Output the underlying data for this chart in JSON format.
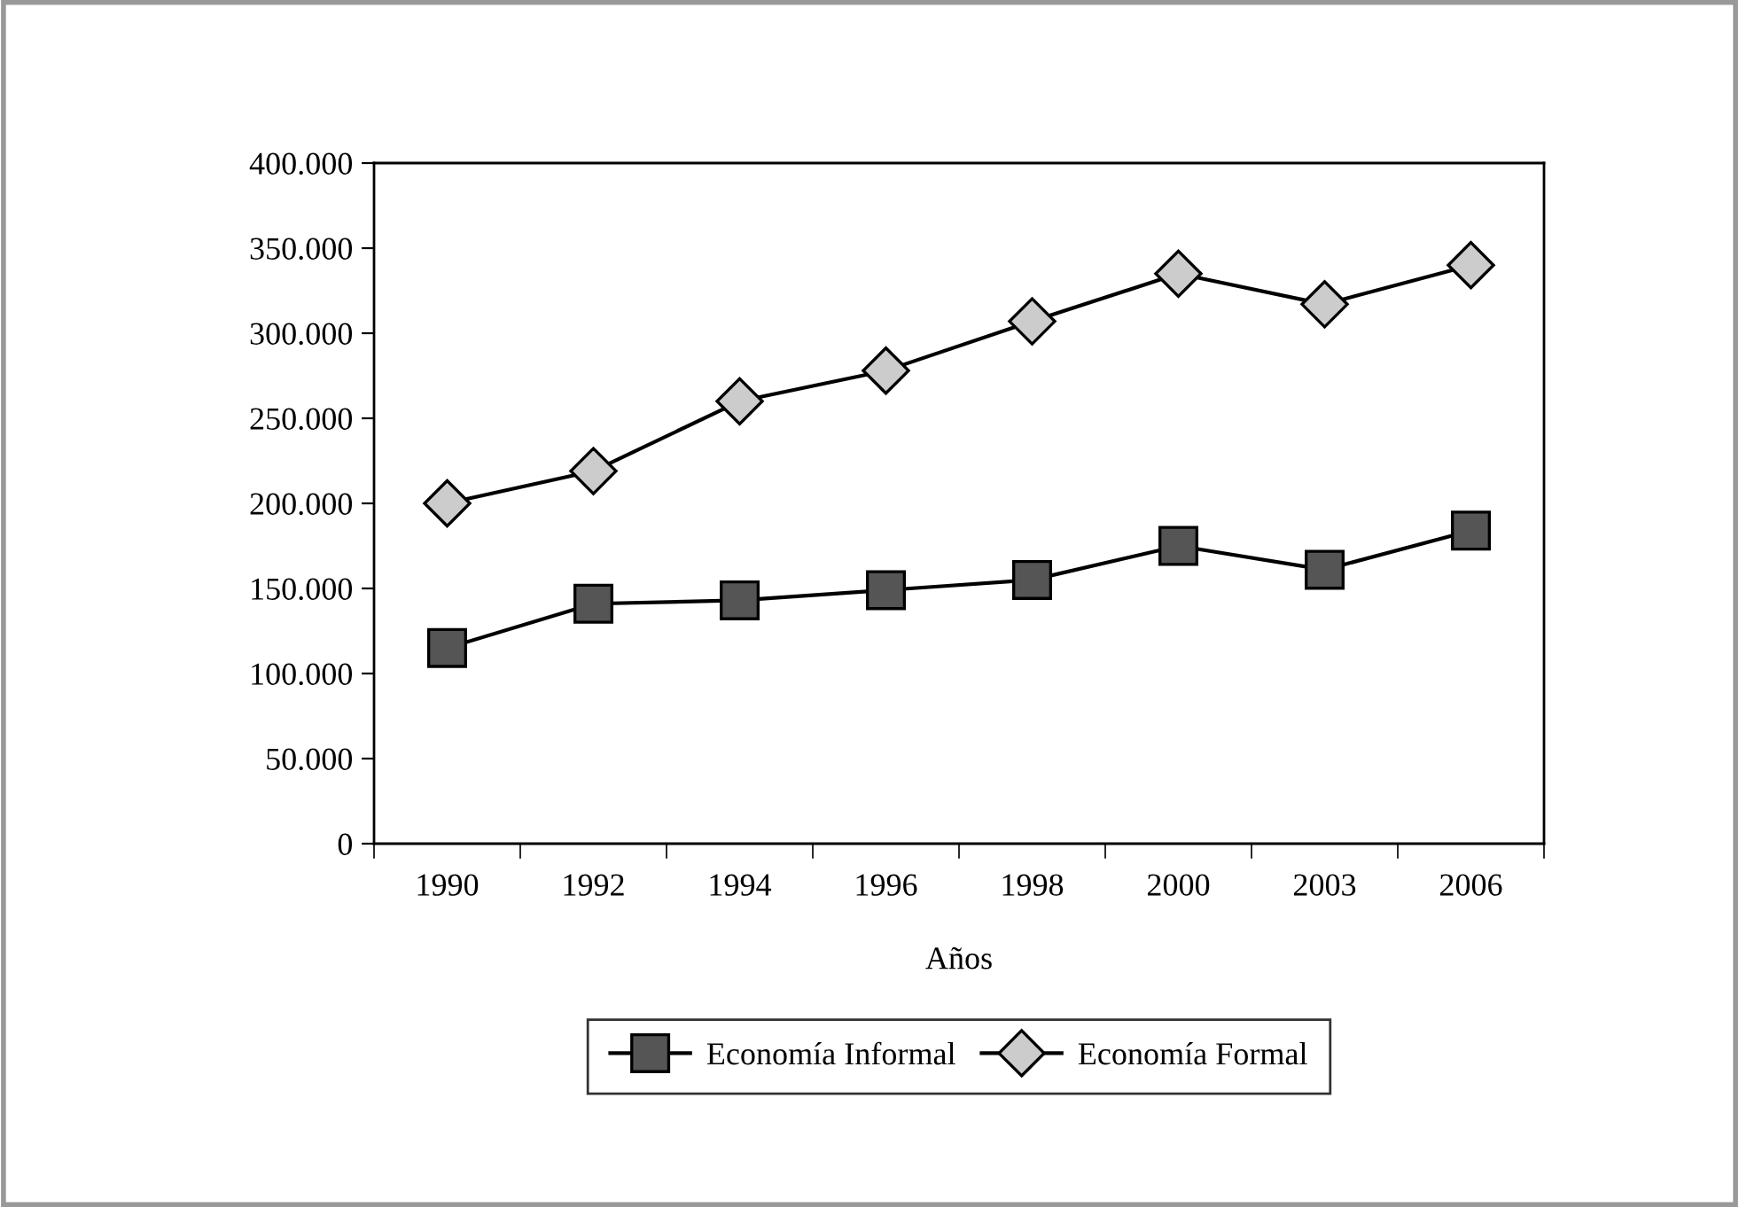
{
  "chart_data": {
    "type": "line",
    "xlabel": "Años",
    "categories": [
      "1990",
      "1992",
      "1994",
      "1996",
      "1998",
      "2000",
      "2003",
      "2006"
    ],
    "series": [
      {
        "name": "Economía Informal",
        "color": "#555555",
        "marker": "square",
        "values": [
          115000,
          141000,
          143000,
          149000,
          155000,
          175000,
          161000,
          184000
        ]
      },
      {
        "name": "Economía Formal",
        "color": "#cccccc",
        "marker": "diamond",
        "values": [
          200000,
          219000,
          260000,
          278000,
          307000,
          335000,
          317000,
          340000
        ]
      }
    ],
    "ylim": [
      0,
      400000
    ],
    "yticks": [
      0,
      {
        "value": 50000,
        "label": "50.000"
      },
      {
        "value": 100000,
        "label": "100.000"
      },
      {
        "value": 150000,
        "label": "150.000"
      },
      {
        "value": 200000,
        "label": "200.000"
      },
      {
        "value": 250000,
        "label": "250.000"
      },
      {
        "value": 300000,
        "label": "300.000"
      },
      {
        "value": 350000,
        "label": "350.000"
      },
      {
        "value": 400000,
        "label": "400.000"
      }
    ],
    "grid": false,
    "legend": "bottom",
    "line_style": "solid"
  }
}
